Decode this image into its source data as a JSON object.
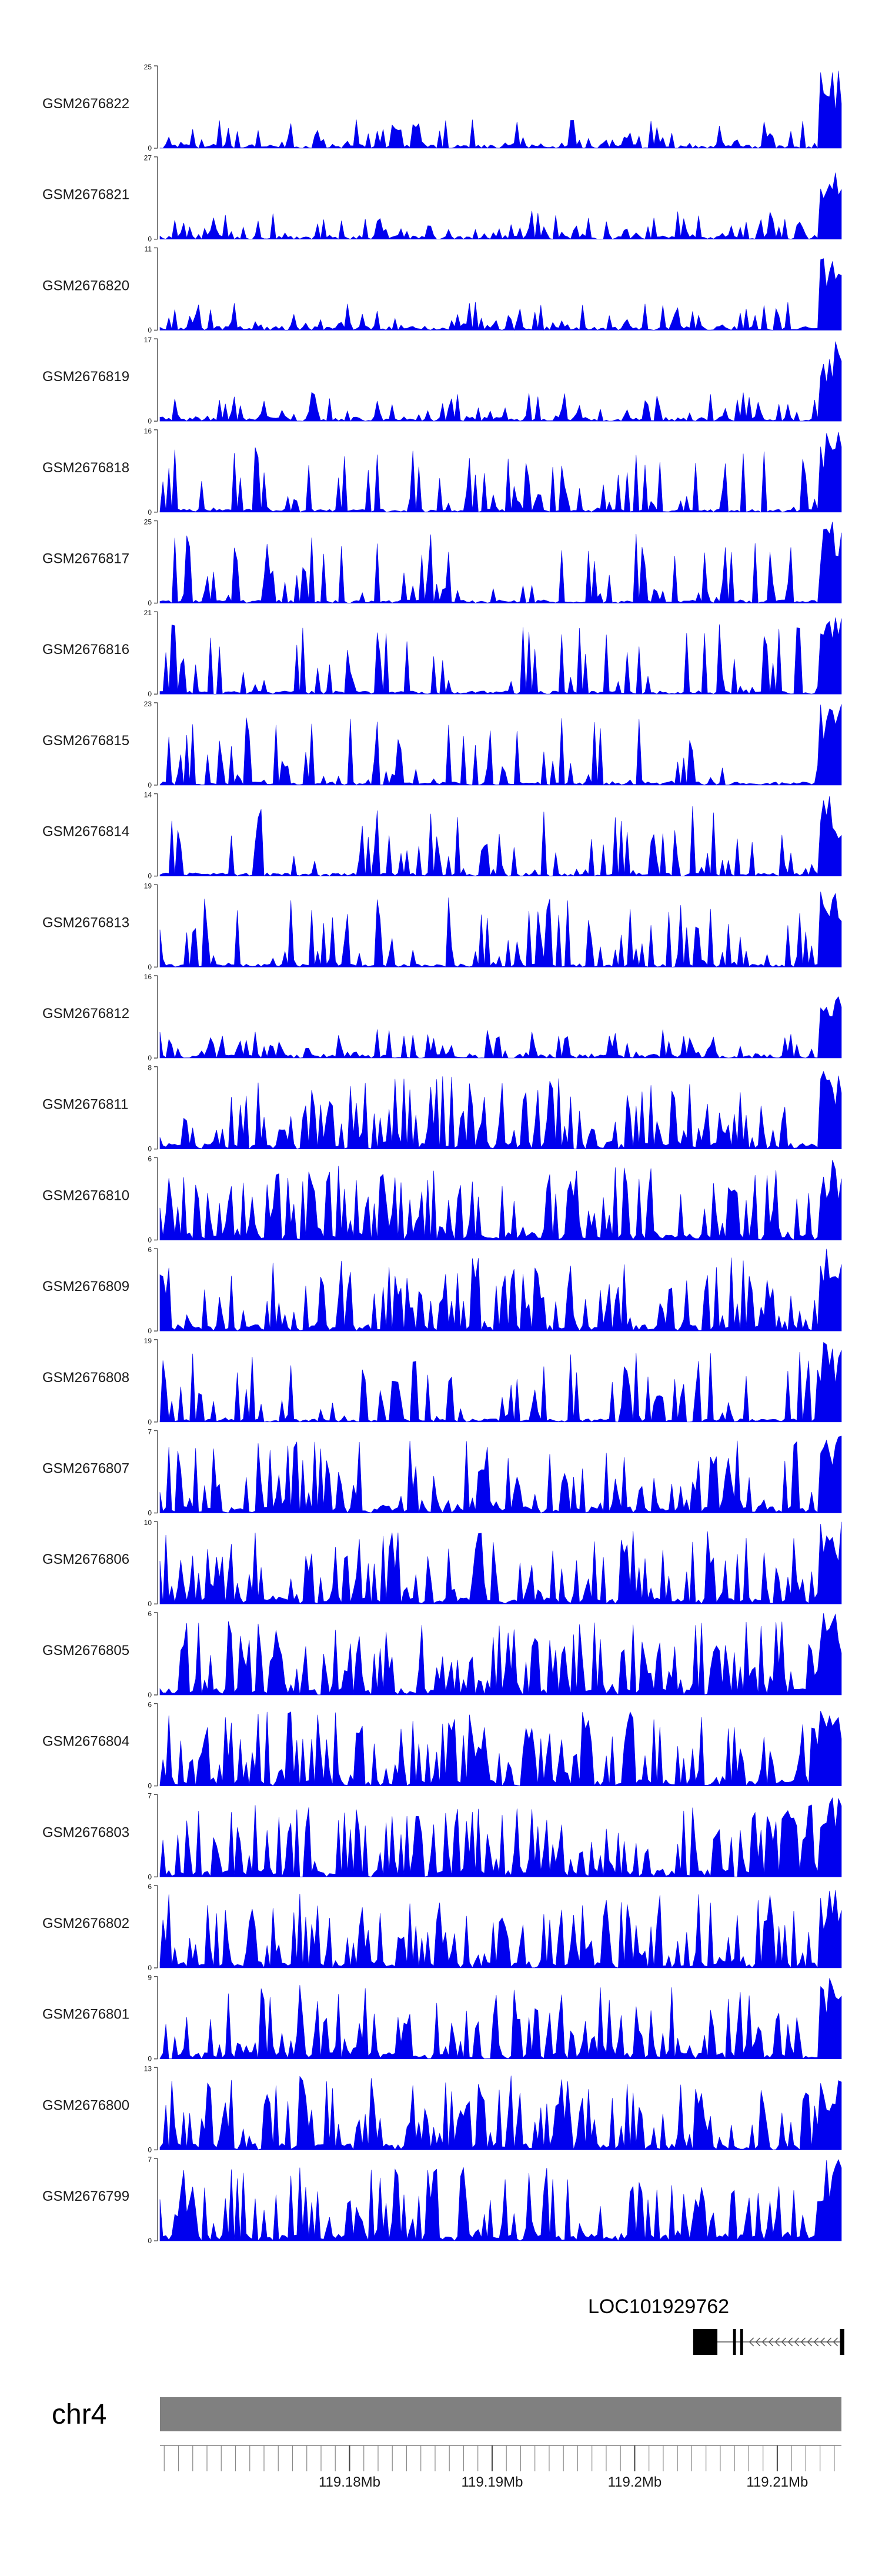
{
  "chart_data": {
    "type": "area",
    "chromosome": "chr4",
    "x_range": [
      119.1667,
      119.2145
    ],
    "x_ticks": [
      {
        "value": 119.18,
        "label": "119.18Mb"
      },
      {
        "value": 119.19,
        "label": "119.19Mb"
      },
      {
        "value": 119.2,
        "label": "119.2Mb"
      },
      {
        "value": 119.21,
        "label": "119.21Mb"
      }
    ],
    "series_color": "#0000ee",
    "tracks": [
      {
        "name": "GSM2676822",
        "ymax": 25,
        "ymin": 0
      },
      {
        "name": "GSM2676821",
        "ymax": 27,
        "ymin": 0
      },
      {
        "name": "GSM2676820",
        "ymax": 11,
        "ymin": 0
      },
      {
        "name": "GSM2676819",
        "ymax": 17,
        "ymin": 0
      },
      {
        "name": "GSM2676818",
        "ymax": 16,
        "ymin": 0
      },
      {
        "name": "GSM2676817",
        "ymax": 25,
        "ymin": 0
      },
      {
        "name": "GSM2676816",
        "ymax": 21,
        "ymin": 0
      },
      {
        "name": "GSM2676815",
        "ymax": 23,
        "ymin": 0
      },
      {
        "name": "GSM2676814",
        "ymax": 14,
        "ymin": 0
      },
      {
        "name": "GSM2676813",
        "ymax": 19,
        "ymin": 0
      },
      {
        "name": "GSM2676812",
        "ymax": 16,
        "ymin": 0
      },
      {
        "name": "GSM2676811",
        "ymax": 8,
        "ymin": 0
      },
      {
        "name": "GSM2676810",
        "ymax": 6,
        "ymin": 0
      },
      {
        "name": "GSM2676809",
        "ymax": 6,
        "ymin": 0
      },
      {
        "name": "GSM2676808",
        "ymax": 19,
        "ymin": 0
      },
      {
        "name": "GSM2676807",
        "ymax": 7,
        "ymin": 0
      },
      {
        "name": "GSM2676806",
        "ymax": 10,
        "ymin": 0
      },
      {
        "name": "GSM2676805",
        "ymax": 6,
        "ymin": 0
      },
      {
        "name": "GSM2676804",
        "ymax": 6,
        "ymin": 0
      },
      {
        "name": "GSM2676803",
        "ymax": 7,
        "ymin": 0
      },
      {
        "name": "GSM2676802",
        "ymax": 6,
        "ymin": 0
      },
      {
        "name": "GSM2676801",
        "ymax": 9,
        "ymin": 0
      },
      {
        "name": "GSM2676800",
        "ymax": 13,
        "ymin": 0
      },
      {
        "name": "GSM2676799",
        "ymax": 7,
        "ymin": 0
      }
    ],
    "gene": {
      "name": "LOC101929762",
      "strand": "-",
      "exons_mb": [
        [
          119.2041,
          119.2058
        ],
        [
          119.2069,
          119.2071
        ],
        [
          119.2074,
          119.2076
        ],
        [
          119.2144,
          119.2147
        ]
      ]
    }
  }
}
